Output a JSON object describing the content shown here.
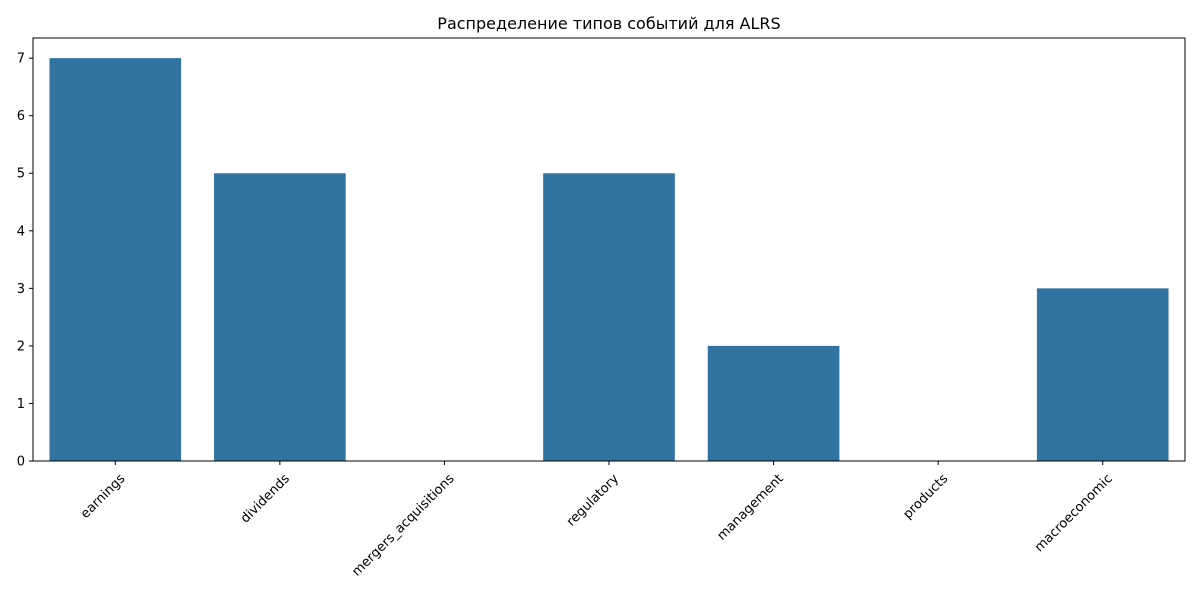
{
  "chart_data": {
    "type": "bar",
    "title": "Распределение типов событий для ALRS",
    "xlabel": "",
    "ylabel": "",
    "categories": [
      "earnings",
      "dividends",
      "mergers_acquisitions",
      "regulatory",
      "management",
      "products",
      "macroeconomic"
    ],
    "values": [
      7,
      5,
      0,
      5,
      2,
      0,
      3
    ],
    "ylim": [
      0,
      7.35
    ],
    "yticks": [
      0,
      1,
      2,
      3,
      4,
      5,
      6,
      7
    ],
    "grid": false,
    "legend": "none",
    "bar_color": "#3274a1",
    "xtick_rotation": 45
  }
}
